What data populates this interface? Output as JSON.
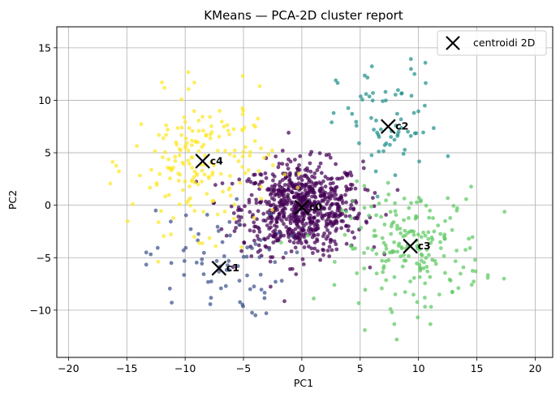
{
  "chart_data": {
    "type": "scatter",
    "title": "KMeans — PCA-2D cluster report",
    "xlabel": "PC1",
    "ylabel": "PC2",
    "xlim": [
      -21,
      21.5
    ],
    "ylim": [
      -14.5,
      17
    ],
    "xticks": [
      "−20",
      "−15",
      "−10",
      "−5",
      "0",
      "5",
      "10",
      "15",
      "20"
    ],
    "yticks": [
      "−10",
      "−5",
      "0",
      "5",
      "10",
      "15"
    ],
    "xtick_values": [
      -20,
      -15,
      -10,
      -5,
      0,
      5,
      10,
      15,
      20
    ],
    "ytick_values": [
      -10,
      -5,
      0,
      5,
      10,
      15
    ],
    "grid": true,
    "legend": {
      "position": "top-right",
      "label": "centroidi 2D"
    },
    "clusters": [
      {
        "id": 0,
        "color": "#440154",
        "center": [
          0,
          -0.3
        ],
        "spread": [
          2.6,
          2.2
        ],
        "count": 750
      },
      {
        "id": 1,
        "color": "#3b528b",
        "center": [
          -7.5,
          -5.5
        ],
        "spread": [
          3.0,
          2.6
        ],
        "count": 75
      },
      {
        "id": 2,
        "color": "#21918c",
        "center": [
          7.5,
          7.5
        ],
        "spread": [
          2.2,
          3.0
        ],
        "count": 70
      },
      {
        "id": 3,
        "color": "#5ec962",
        "center": [
          9.5,
          -4.0
        ],
        "spread": [
          3.0,
          2.8
        ],
        "count": 200
      },
      {
        "id": 4,
        "color": "#fde725",
        "center": [
          -8.5,
          4.0
        ],
        "spread": [
          3.0,
          3.2
        ],
        "count": 190
      }
    ],
    "centroids": [
      {
        "label": "c0",
        "x": 0.0,
        "y": -0.2
      },
      {
        "label": "c1",
        "x": -7.1,
        "y": -6.0
      },
      {
        "label": "c2",
        "x": 7.4,
        "y": 7.5
      },
      {
        "label": "c3",
        "x": 9.3,
        "y": -3.9
      },
      {
        "label": "c4",
        "x": -8.5,
        "y": 4.2
      }
    ]
  }
}
